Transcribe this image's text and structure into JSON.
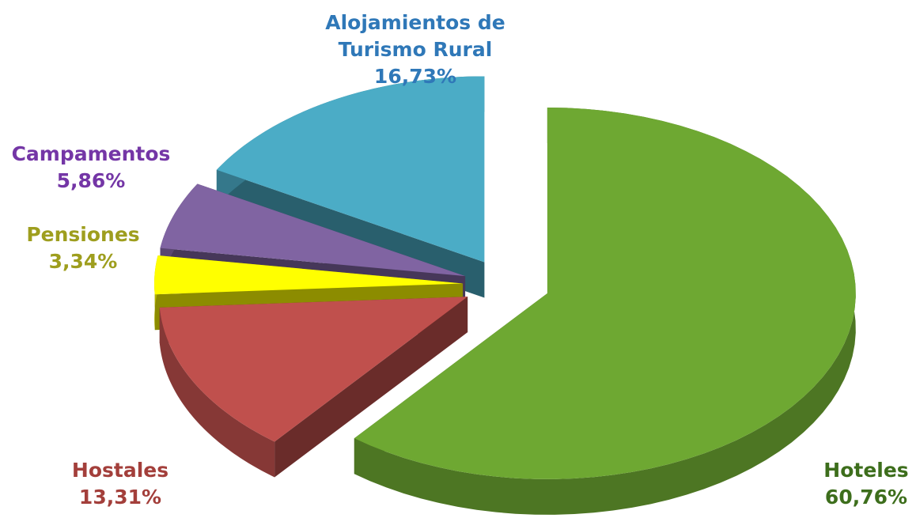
{
  "chart_data": {
    "type": "pie",
    "categories": [
      "Hoteles",
      "Hostales",
      "Pensiones",
      "Campamentos",
      "Alojamientos de Turismo Rural"
    ],
    "values": [
      60.76,
      13.31,
      3.34,
      5.86,
      16.73
    ],
    "value_labels": [
      "60,76%",
      "13,31%",
      "3,34%",
      "5,86%",
      "16,73%"
    ],
    "colors": [
      "#6ea832",
      "#c0504d",
      "#ffff00",
      "#8064a2",
      "#4bacc6"
    ],
    "label_colors": [
      "#3d6e1c",
      "#a33f3b",
      "#9e9e1e",
      "#7436a6",
      "#2f78b8"
    ]
  }
}
